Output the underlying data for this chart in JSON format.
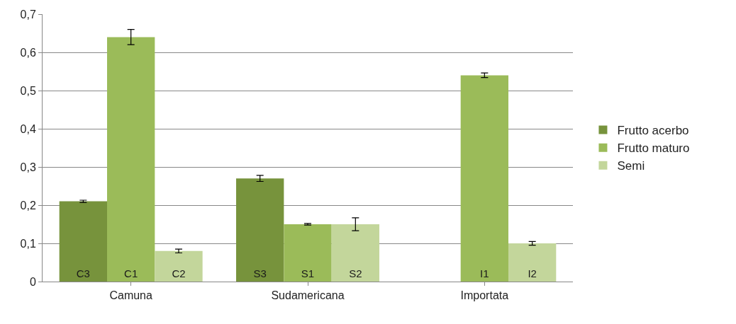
{
  "chart_data": {
    "type": "bar",
    "categories": [
      "Camuna",
      "Sudamericana",
      "Importata"
    ],
    "series": [
      {
        "name": "Frutto acerbo",
        "color": "#77933c",
        "values": [
          0.21,
          0.27,
          null
        ],
        "errors": [
          0.003,
          0.008,
          null
        ],
        "value_labels": [
          "C3",
          "S3",
          null
        ]
      },
      {
        "name": "Frutto maturo",
        "color": "#9bbb59",
        "values": [
          0.64,
          0.15,
          0.54
        ],
        "errors": [
          0.02,
          0.002,
          0.006
        ],
        "value_labels": [
          "C1",
          "S1",
          "I1"
        ]
      },
      {
        "name": "Semi",
        "color": "#c3d69b",
        "values": [
          0.08,
          0.15,
          0.1
        ],
        "errors": [
          0.005,
          0.017,
          0.005
        ],
        "value_labels": [
          "C2",
          "S2",
          "I2"
        ]
      }
    ],
    "ylim": [
      0,
      0.7
    ],
    "yticks": [
      0,
      {
        "value": 0.1,
        "label": "0,1"
      },
      {
        "value": 0.2,
        "label": "0,2"
      },
      {
        "value": 0.3,
        "label": "0,3"
      },
      {
        "value": 0.4,
        "label": "0,4"
      },
      {
        "value": 0.5,
        "label": "0,5"
      },
      {
        "value": 0.6,
        "label": "0,6"
      },
      {
        "value": 0.7,
        "label": "0,7"
      }
    ],
    "grid": "y",
    "legend": "right"
  }
}
